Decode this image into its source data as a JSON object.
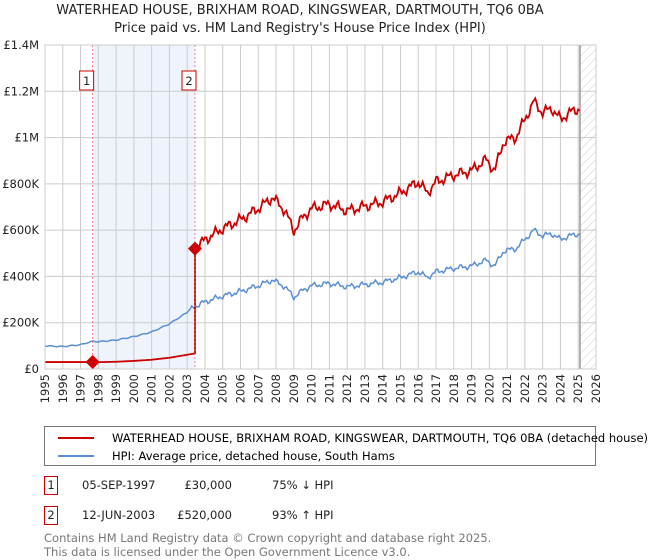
{
  "title": "WATERHEAD HOUSE, BRIXHAM ROAD, KINGSWEAR, DARTMOUTH, TQ6 0BA",
  "subtitle": "Price paid vs. HM Land Registry's House Price Index (HPI)",
  "chart_data": {
    "type": "line",
    "xlim": [
      1995,
      2026
    ],
    "ylim": [
      0,
      1400000
    ],
    "x_ticks": [
      "1995",
      "1996",
      "1997",
      "1998",
      "1999",
      "2000",
      "2001",
      "2002",
      "2003",
      "2004",
      "2005",
      "2006",
      "2007",
      "2008",
      "2009",
      "2010",
      "2011",
      "2012",
      "2013",
      "2014",
      "2015",
      "2016",
      "2017",
      "2018",
      "2019",
      "2020",
      "2021",
      "2022",
      "2023",
      "2024",
      "2025",
      "2026"
    ],
    "y_ticks": [
      {
        "v": 0,
        "label": "£0"
      },
      {
        "v": 200000,
        "label": "£200K"
      },
      {
        "v": 400000,
        "label": "£400K"
      },
      {
        "v": 600000,
        "label": "£600K"
      },
      {
        "v": 800000,
        "label": "£800K"
      },
      {
        "v": 1000000,
        "label": "£1M"
      },
      {
        "v": 1200000,
        "label": "£1.2M"
      },
      {
        "v": 1400000,
        "label": "£1.4M"
      }
    ],
    "hpi_series": {
      "name": "HPI: Average price, detached house, South Hams",
      "color": "#5b8fd4",
      "points": [
        [
          1995,
          100000
        ],
        [
          1996,
          97000
        ],
        [
          1997,
          105000
        ],
        [
          1997.68,
          120000
        ],
        [
          1998,
          118000
        ],
        [
          1999,
          125000
        ],
        [
          2000,
          140000
        ],
        [
          2001,
          160000
        ],
        [
          2002,
          195000
        ],
        [
          2002.9,
          240000
        ],
        [
          2003.44,
          270000
        ],
        [
          2004,
          290000
        ],
        [
          2005,
          315000
        ],
        [
          2006,
          335000
        ],
        [
          2007,
          360000
        ],
        [
          2007.8,
          385000
        ],
        [
          2008.5,
          355000
        ],
        [
          2009,
          310000
        ],
        [
          2009.5,
          340000
        ],
        [
          2010,
          360000
        ],
        [
          2011,
          370000
        ],
        [
          2012,
          355000
        ],
        [
          2013,
          365000
        ],
        [
          2014,
          375000
        ],
        [
          2015,
          395000
        ],
        [
          2016,
          420000
        ],
        [
          2016.5,
          395000
        ],
        [
          2017,
          420000
        ],
        [
          2018,
          435000
        ],
        [
          2019,
          445000
        ],
        [
          2019.8,
          470000
        ],
        [
          2020.3,
          445000
        ],
        [
          2020.8,
          510000
        ],
        [
          2021.5,
          520000
        ],
        [
          2022,
          560000
        ],
        [
          2022.5,
          600000
        ],
        [
          2023,
          575000
        ],
        [
          2023.5,
          585000
        ],
        [
          2024,
          560000
        ],
        [
          2024.5,
          575000
        ],
        [
          2025.1,
          585000
        ]
      ]
    },
    "property_series": {
      "name": "WATERHEAD HOUSE, BRIXHAM ROAD, KINGSWEAR, DARTMOUTH, TQ6 0BA (detached house)",
      "color": "#cc0000"
    },
    "sales": [
      {
        "id": "1",
        "year": 1997.68,
        "price": 30000,
        "date": "05-SEP-1997",
        "price_label": "£30,000",
        "hpi_label": "75% ↓ HPI"
      },
      {
        "id": "2",
        "year": 2003.44,
        "price": 520000,
        "date": "12-JUN-2003",
        "price_label": "£520,000",
        "hpi_label": "93% ↑ HPI"
      }
    ],
    "forecast_start": 2025.1
  },
  "footer": [
    "Contains HM Land Registry data © Crown copyright and database right 2025.",
    "This data is licensed under the Open Government Licence v3.0."
  ]
}
